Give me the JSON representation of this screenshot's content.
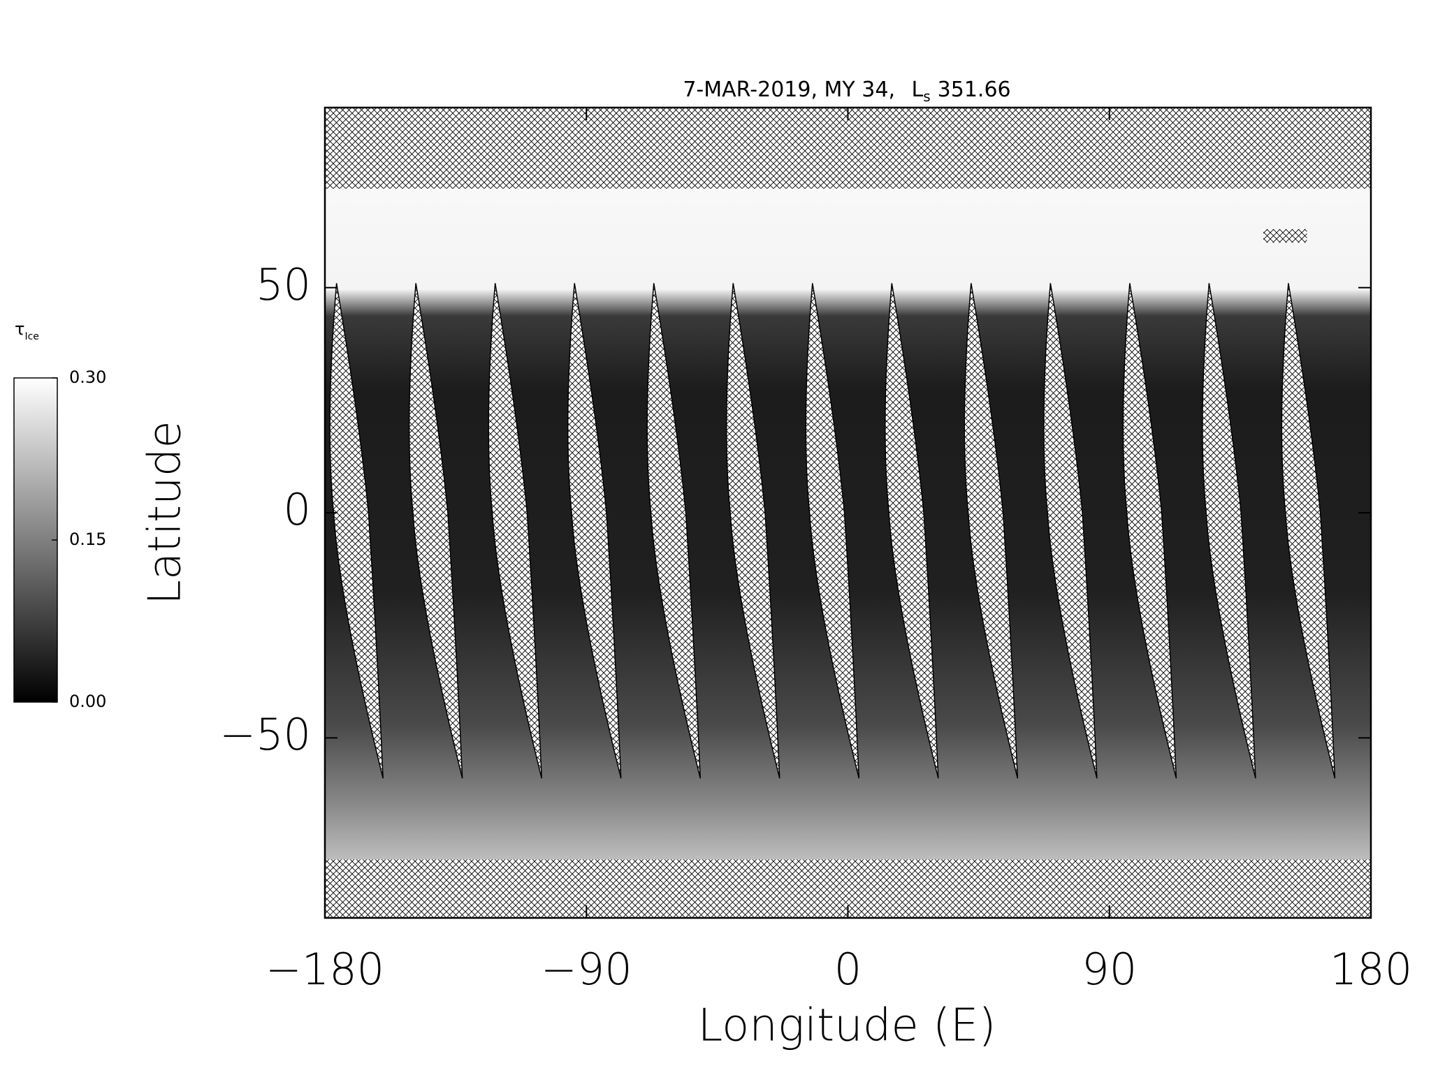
{
  "chart_data": {
    "type": "map",
    "title": "7-MAR-2019, MY 34,",
    "title_symbol": "L",
    "title_symbol_subscript": "s",
    "title_value": "351.66",
    "xlabel": "Longitude (E)",
    "ylabel": "Latitude",
    "xlim": [
      -180,
      180
    ],
    "ylim": [
      -90,
      90
    ],
    "xticks": [
      {
        "value": -180,
        "label": "−180"
      },
      {
        "value": -90,
        "label": "−90"
      },
      0,
      90,
      180
    ],
    "yticks": [
      {
        "value": -50,
        "label": "−50"
      },
      0,
      50
    ],
    "colorbar": {
      "label": "τ",
      "label_subscript": "Ice",
      "lim": [
        0,
        0.3
      ],
      "ticks": [
        {
          "value": 0,
          "label": "0.00"
        },
        0.15,
        {
          "value": 0.3,
          "label": "0.30"
        }
      ],
      "colors": [
        "#000000",
        "#ffffff"
      ]
    }
  }
}
